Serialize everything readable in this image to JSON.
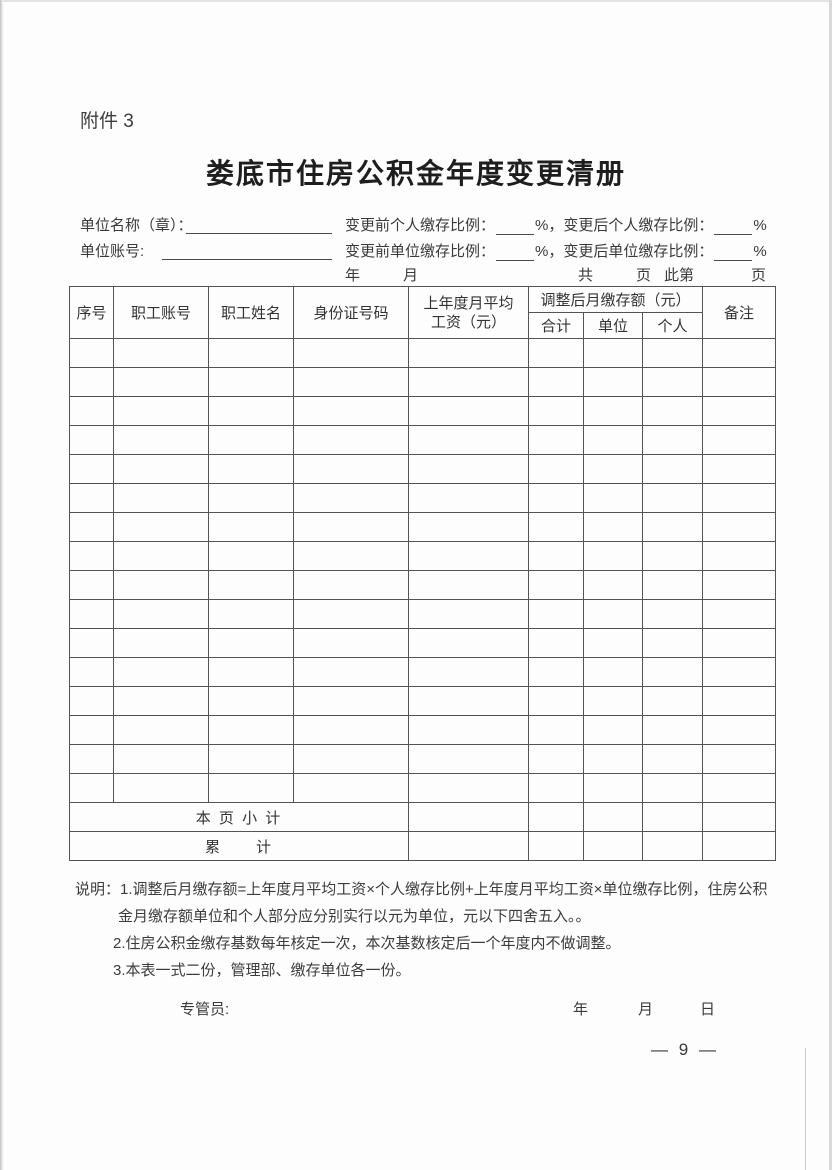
{
  "page": {
    "attachment_label": "附件 3",
    "title": "娄底市住房公积金年度变更清册",
    "page_number": "— 9 —"
  },
  "fields": {
    "unit_name_label": "单位名称（章）：",
    "unit_account_label": "单位账号:",
    "ratio_row1": {
      "before": "变更前个人缴存比例：",
      "mid": "%，变更后个人缴存比例：",
      "end": "%"
    },
    "ratio_row2": {
      "before": "变更前单位缴存比例：",
      "mid": "%，变更后单位缴存比例：",
      "end": "%"
    },
    "dateline": {
      "year": "年",
      "month": "月",
      "total": "共",
      "pages": "页",
      "this_is": "此第",
      "page": "页"
    }
  },
  "table": {
    "col_seq": "序号",
    "col_account": "职工账号",
    "col_name": "职工姓名",
    "col_id": "身份证号码",
    "col_salary_line1": "上年度月平均",
    "col_salary_line2": "工资（元）",
    "group_adjusted": "调整后月缴存额（元）",
    "col_total": "合计",
    "col_unit": "单位",
    "col_personal": "个人",
    "col_remark": "备注",
    "row_count": 16,
    "body_columns": 9,
    "subtotal_label": "本 页 小 计",
    "cumulative_label": "累　　计"
  },
  "notes": {
    "line1": "说明：1.调整后月缴存额=上年度月平均工资×个人缴存比例+上年度月平均工资×单位缴存比例，住房公积",
    "line2": "金月缴存额单位和个人部分应分别实行以元为单位，元以下四舍五入。。",
    "line3": "2.住房公积金缴存基数每年核定一次，本次基数核定后一个年度内不做调整。",
    "line4": "3.本表一式二份，管理部、缴存单位各一份。"
  },
  "footer": {
    "manager_label": "专管员:",
    "year": "年",
    "month": "月",
    "day": "日"
  }
}
